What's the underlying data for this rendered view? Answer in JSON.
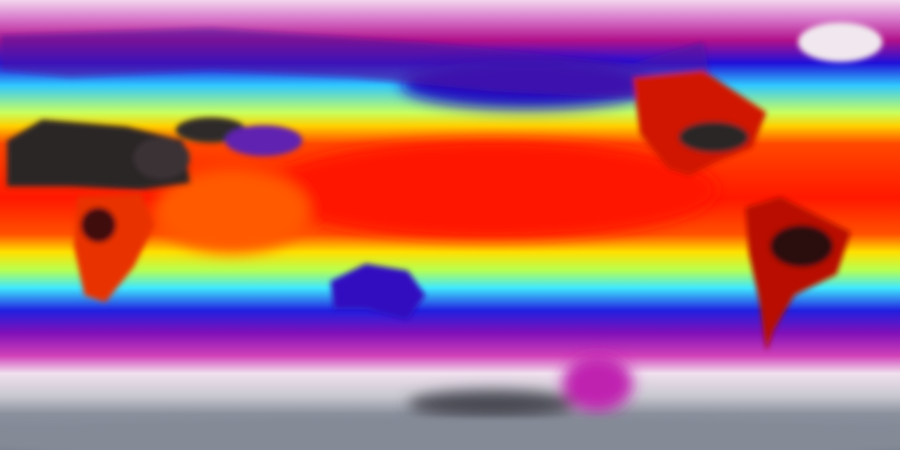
{
  "map": {
    "projection": "equirectangular",
    "variable_colors": {
      "coldest": "#7a8290",
      "very_cold": "#f4e6f2",
      "cold": "#c81aa8",
      "cool": "#1a10e0",
      "mild": "#40e8ff",
      "warm": "#ffff20",
      "hot": "#ff2000",
      "hottest": "#2a2628"
    }
  }
}
